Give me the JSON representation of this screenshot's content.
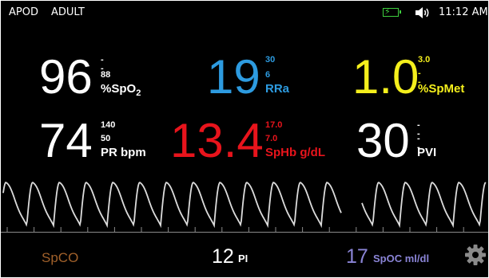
{
  "status": {
    "mode1": "APOD",
    "mode2": "ADULT",
    "time": "11:12 AM",
    "battery_icon": "battery-charging-icon",
    "speaker_icon": "speaker-icon"
  },
  "params": {
    "spo2": {
      "value": "96",
      "upper": "--",
      "lower": "88",
      "label": "%SpO",
      "sub": "2",
      "color": "#ffffff"
    },
    "rra": {
      "value": "19",
      "upper": "30",
      "lower": "6",
      "label": "RRa",
      "color": "#2d9be0"
    },
    "spmet": {
      "value": "1.0",
      "upper": "3.0",
      "lower": "--",
      "label": "%SpMet",
      "color": "#f4ef1c"
    },
    "pr": {
      "value": "74",
      "upper": "140",
      "lower": "50",
      "label": "PR bpm",
      "color": "#ffffff"
    },
    "sphb": {
      "value": "13.4",
      "upper": "17.0",
      "lower": "7.0",
      "label": "SpHb g/dL",
      "color": "#e8141c"
    },
    "pvi": {
      "value": "30",
      "upper": "--",
      "lower": "--",
      "label": "PVI",
      "color": "#ffffff"
    }
  },
  "bottom": {
    "spco_label": "SpCO",
    "pi_value": "12",
    "pi_label": "PI",
    "spoc_value": "17",
    "spoc_label": "SpOC ml/dl",
    "settings_icon": "gear-icon"
  },
  "colors": {
    "background": "#000000",
    "spco": "#a0602a",
    "spoc": "#8a84d6",
    "waveform": "#dcdcdc",
    "battery": "#3ecf3e"
  }
}
